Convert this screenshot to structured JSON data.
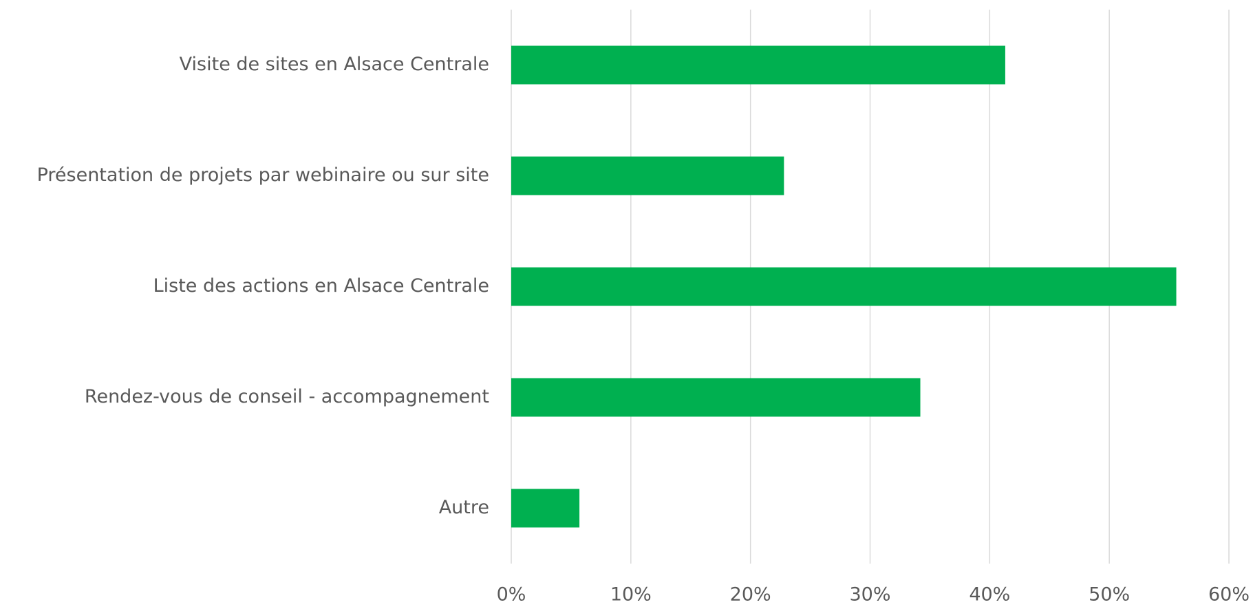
{
  "chart_data": {
    "type": "bar",
    "orientation": "horizontal",
    "categories": [
      "Visite de sites en Alsace Centrale",
      "Présentation de projets par webinaire ou sur site",
      "Liste des actions en Alsace Centrale",
      "Rendez-vous de conseil - accompagnement",
      "Autre"
    ],
    "values": [
      41.3,
      22.8,
      55.6,
      34.2,
      5.7
    ],
    "color": "#00b050",
    "xlim": [
      0,
      60
    ],
    "xticks": [
      {
        "value": 0,
        "label": "0%"
      },
      {
        "value": 10,
        "label": "10%"
      },
      {
        "value": 20,
        "label": "20%"
      },
      {
        "value": 30,
        "label": "30%"
      },
      {
        "value": 40,
        "label": "40%"
      },
      {
        "value": 50,
        "label": "50%"
      },
      {
        "value": 60,
        "label": "60%"
      }
    ],
    "grid": true
  }
}
